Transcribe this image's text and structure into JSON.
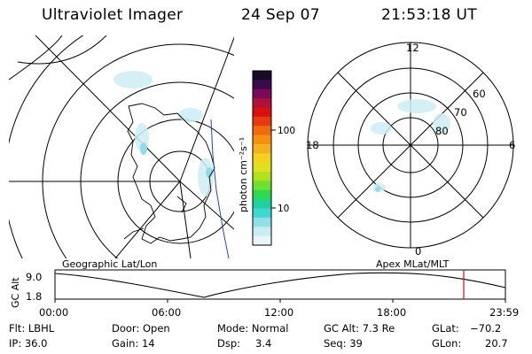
{
  "header": {
    "instrument": "Ultraviolet Imager",
    "date": "24 Sep 07",
    "time": "21:53:18 UT"
  },
  "colorbar": {
    "unit_label": "photon cm⁻²s⁻¹",
    "ticks": [
      "100",
      "10"
    ],
    "colors": [
      "#1a0a2a",
      "#3a0a4a",
      "#7a0a5a",
      "#b0103a",
      "#d81010",
      "#e83a10",
      "#f06a10",
      "#f59010",
      "#f5b020",
      "#f5d020",
      "#e0e020",
      "#b0e020",
      "#70e030",
      "#30d850",
      "#20d0a0",
      "#40d8d0",
      "#90e0e8",
      "#c8ecf2",
      "#e8f6f8"
    ]
  },
  "mlt_plot": {
    "hour_labels": [
      "12",
      "18",
      "6",
      "0"
    ],
    "lat_labels": [
      "60",
      "70",
      "80"
    ]
  },
  "projection_labels": {
    "left": "Geographic Lat/Lon",
    "right": "Apex MLat/MLT"
  },
  "altitude_plot": {
    "axis_label": "GC Alt",
    "y_ticks": [
      "9.0",
      "1.8"
    ],
    "x_ticks": [
      "00:00",
      "06:00",
      "12:00",
      "18:00",
      "23:59"
    ]
  },
  "status": {
    "filter": "Flt: LBHL",
    "ip": "IP: 36.0",
    "door": "Door: Open",
    "gain": "Gain: 14",
    "mode": "Mode: Normal",
    "dsp_label": "Dsp:",
    "dsp_value": "3.4",
    "gc_alt": "GC Alt: 7.3 Re",
    "seq": "Seq: 39",
    "glat_label": "GLat:",
    "glat_value": "−70.2",
    "glon_label": "GLon:",
    "glon_value": "20.7"
  }
}
